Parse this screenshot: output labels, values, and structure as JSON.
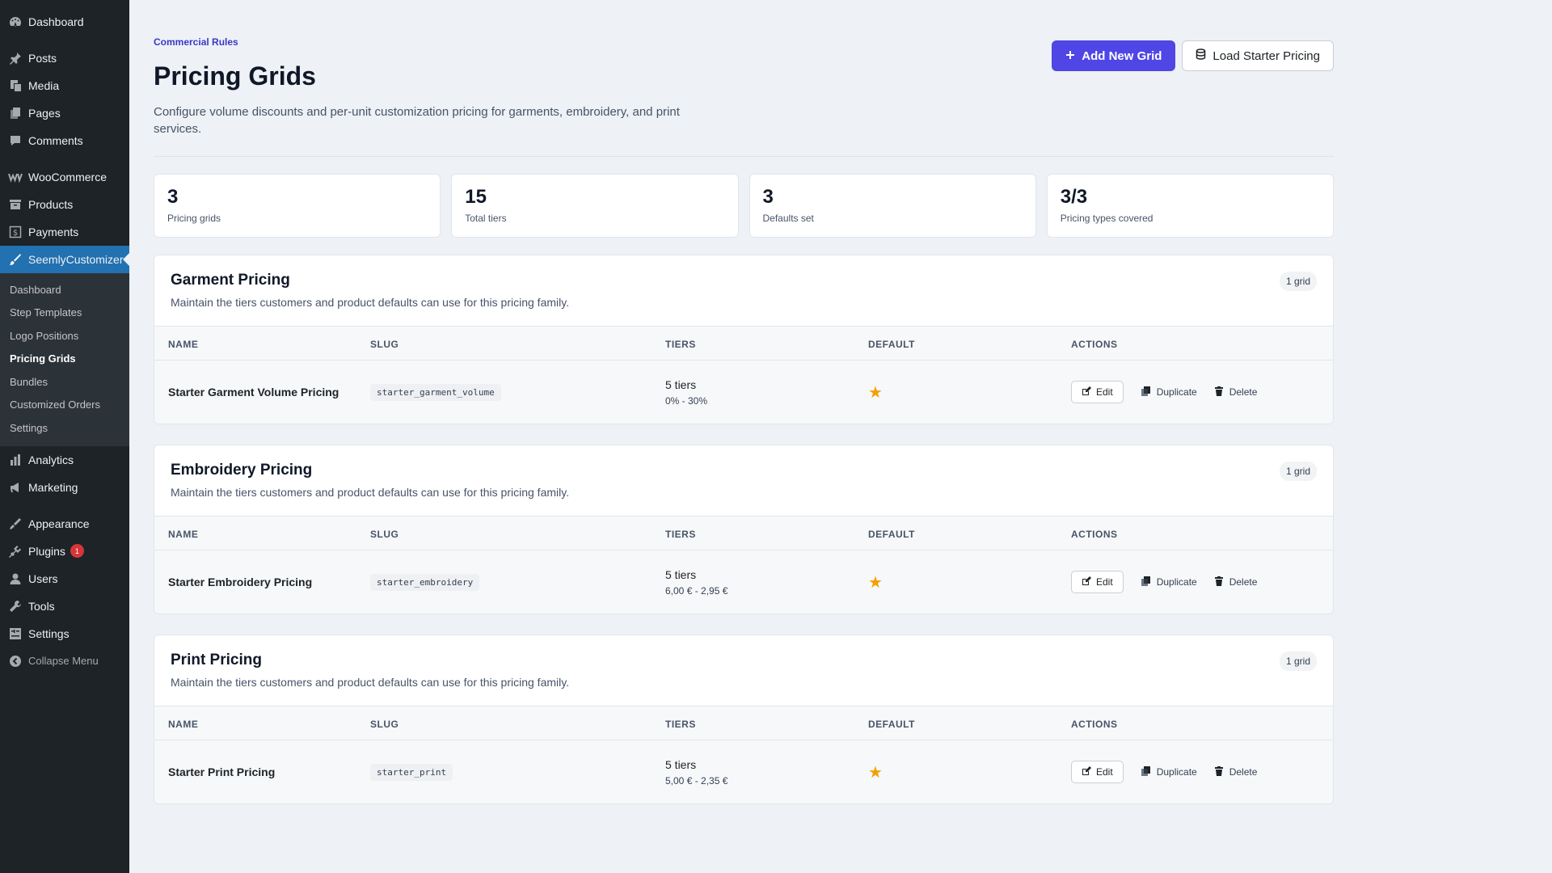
{
  "sidebar": {
    "items_top": [
      {
        "label": "Dashboard",
        "icon": "dashboard-icon"
      },
      {
        "label": "Posts",
        "icon": "pin-icon"
      },
      {
        "label": "Media",
        "icon": "media-icon"
      },
      {
        "label": "Pages",
        "icon": "pages-icon"
      },
      {
        "label": "Comments",
        "icon": "comment-icon"
      },
      {
        "label": "WooCommerce",
        "icon": "woo-icon"
      },
      {
        "label": "Products",
        "icon": "archive-icon"
      },
      {
        "label": "Payments",
        "icon": "dollar-icon"
      },
      {
        "label": "SeemlyCustomizer",
        "icon": "brush-icon"
      }
    ],
    "submenu": [
      "Dashboard",
      "Step Templates",
      "Logo Positions",
      "Pricing Grids",
      "Bundles",
      "Customized Orders",
      "Settings"
    ],
    "current_submenu": "Pricing Grids",
    "items_bottom": [
      {
        "label": "Analytics",
        "icon": "chart-icon"
      },
      {
        "label": "Marketing",
        "icon": "megaphone-icon"
      },
      {
        "label": "Appearance",
        "icon": "appearance-icon"
      },
      {
        "label": "Plugins",
        "icon": "plugin-icon",
        "badge": "1"
      },
      {
        "label": "Users",
        "icon": "user-icon"
      },
      {
        "label": "Tools",
        "icon": "wrench-icon"
      },
      {
        "label": "Settings",
        "icon": "settings-icon"
      }
    ],
    "collapse": "Collapse Menu"
  },
  "header": {
    "eyebrow": "Commercial Rules",
    "title": "Pricing Grids",
    "description": "Configure volume discounts and per-unit customization pricing for garments, embroidery, and print services.",
    "add_button": "Add New Grid",
    "load_button": "Load Starter Pricing"
  },
  "stats": [
    {
      "value": "3",
      "label": "Pricing grids"
    },
    {
      "value": "15",
      "label": "Total tiers"
    },
    {
      "value": "3",
      "label": "Defaults set"
    },
    {
      "value": "3/3",
      "label": "Pricing types covered"
    }
  ],
  "table_headers": {
    "name": "NAME",
    "slug": "SLUG",
    "tiers": "TIERS",
    "default": "DEFAULT",
    "actions": "ACTIONS"
  },
  "actions": {
    "edit": "Edit",
    "duplicate": "Duplicate",
    "delete": "Delete"
  },
  "groups": [
    {
      "title": "Garment Pricing",
      "subtitle": "Maintain the tiers customers and product defaults can use for this pricing family.",
      "count": "1 grid",
      "row": {
        "name": "Starter Garment Volume Pricing",
        "slug": "starter_garment_volume",
        "tiers": "5 tiers",
        "range": "0% - 30%",
        "is_default": true
      }
    },
    {
      "title": "Embroidery Pricing",
      "subtitle": "Maintain the tiers customers and product defaults can use for this pricing family.",
      "count": "1 grid",
      "row": {
        "name": "Starter Embroidery Pricing",
        "slug": "starter_embroidery",
        "tiers": "5 tiers",
        "range": "6,00 € - 2,95 €",
        "is_default": true
      }
    },
    {
      "title": "Print Pricing",
      "subtitle": "Maintain the tiers customers and product defaults can use for this pricing family.",
      "count": "1 grid",
      "row": {
        "name": "Starter Print Pricing",
        "slug": "starter_print",
        "tiers": "5 tiers",
        "range": "5,00 € - 2,35 €",
        "is_default": true
      }
    }
  ],
  "colors": {
    "accent": "#4f46e5",
    "wp_active": "#2271b1",
    "sidebar_bg": "#1d2327",
    "star": "#f5a000"
  }
}
